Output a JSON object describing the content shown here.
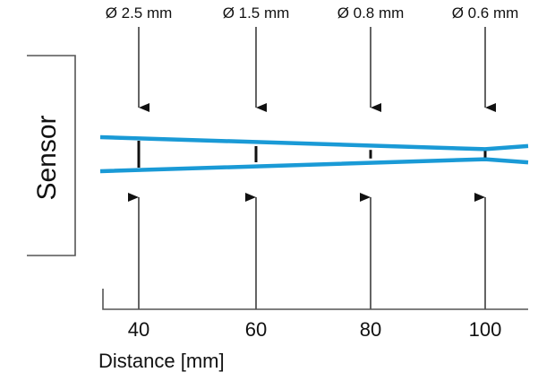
{
  "sensor_label": "Sensor",
  "axis": {
    "title": "Distance [mm]"
  },
  "spots": [
    {
      "distance": "40",
      "diameter": "Ø 2.5 mm",
      "beam_width_mm": 2.5
    },
    {
      "distance": "60",
      "diameter": "Ø 1.5 mm",
      "beam_width_mm": 1.5
    },
    {
      "distance": "80",
      "diameter": "Ø 0.8 mm",
      "beam_width_mm": 0.8
    },
    {
      "distance": "100",
      "diameter": "Ø 0.6 mm",
      "beam_width_mm": 0.6
    }
  ],
  "colors": {
    "beam": "#1a9ad6",
    "ink": "#111111",
    "frame": "#555555"
  }
}
